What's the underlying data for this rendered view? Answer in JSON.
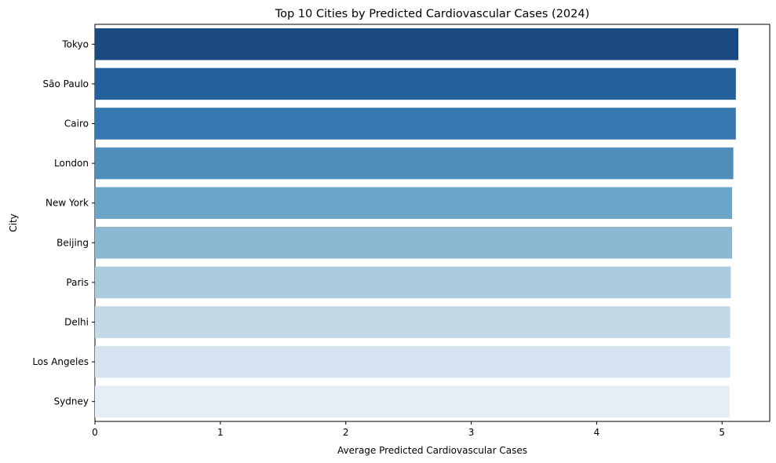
{
  "chart_data": {
    "type": "bar",
    "orientation": "horizontal",
    "title": "Top 10 Cities by Predicted Cardiovascular Cases (2024)",
    "xlabel": "Average Predicted Cardiovascular Cases",
    "ylabel": "City",
    "xlim": [
      0,
      5.38
    ],
    "xticks": [
      0,
      1,
      2,
      3,
      4,
      5
    ],
    "categories": [
      "Tokyo",
      "São Paulo",
      "Cairo",
      "London",
      "New York",
      "Beijing",
      "Paris",
      "Delhi",
      "Los Angeles",
      "Sydney"
    ],
    "values": [
      5.13,
      5.11,
      5.11,
      5.09,
      5.08,
      5.08,
      5.07,
      5.065,
      5.065,
      5.06
    ],
    "colors": [
      "#1b4a81",
      "#24609b",
      "#3878b1",
      "#508fbb",
      "#6ba5c8",
      "#8bb7d1",
      "#aacade",
      "#c3d9e8",
      "#d6e4f1",
      "#e5eef7"
    ],
    "grid": false,
    "legend": "none"
  }
}
